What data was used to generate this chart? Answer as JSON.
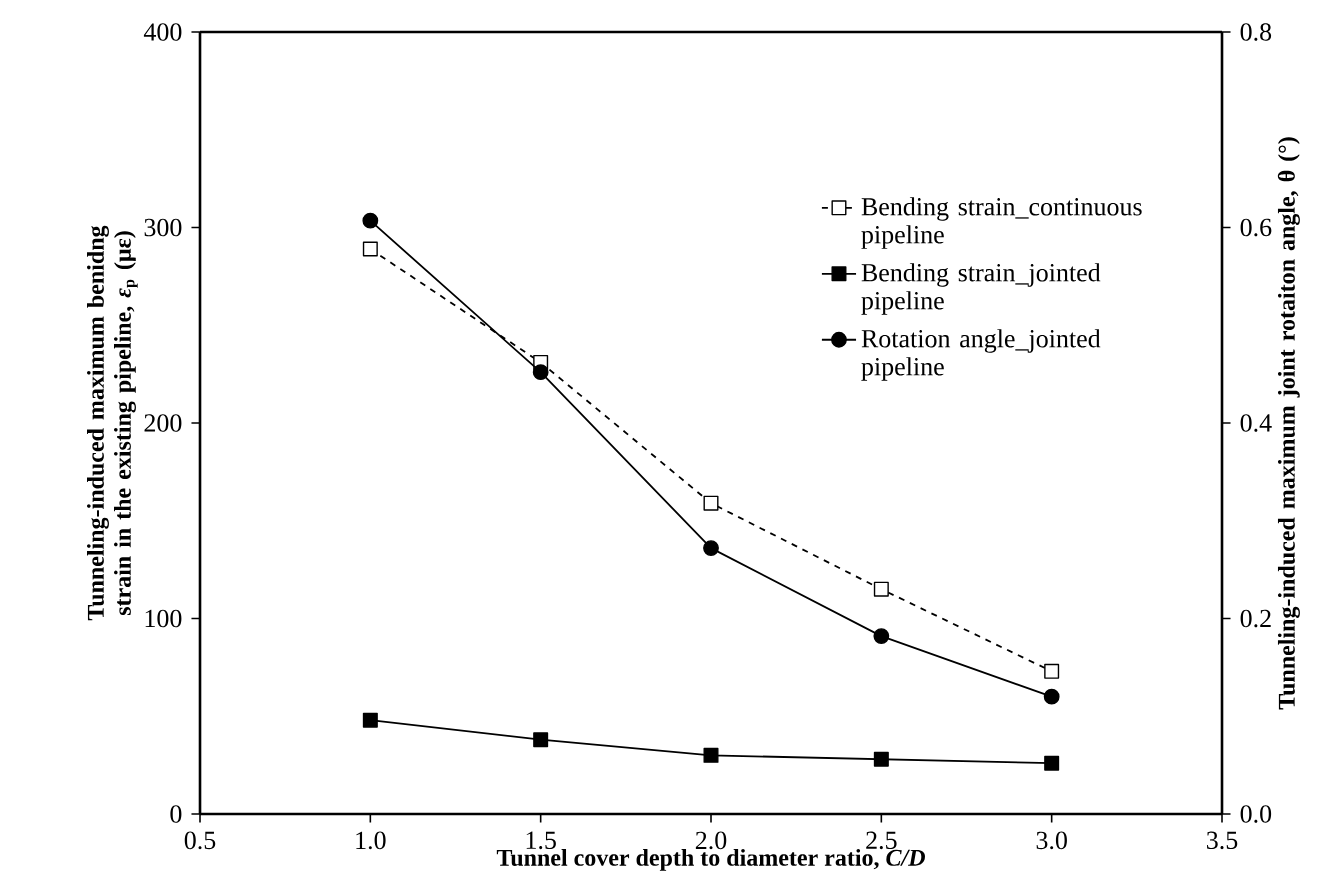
{
  "chart_data": {
    "type": "line",
    "xlabel": "Tunnel cover depth to diameter ratio, *C/D*",
    "ylabel": "Tunneling-induced maximum benidng strain in the existing pipeline, *ε*$_{p}$ (με)",
    "y2label": "Tunneling-induced maximum joint rotaiton angle, θ (°)",
    "x": [
      1.0,
      1.5,
      2.0,
      2.5,
      3.0
    ],
    "series": [
      {
        "name": "Bending strain_continuous pipeline",
        "color": "#000000",
        "marker": "square_open",
        "line_style": "dashed",
        "values": [
          289,
          231,
          159,
          115,
          73
        ]
      },
      {
        "name": "Bending strain_jointed pipeline",
        "color": "#000000",
        "marker": "square",
        "line_style": "solid",
        "values": [
          48,
          38,
          30,
          28,
          26
        ]
      },
      {
        "name": "Rotation angle_jointed pipeline",
        "color": "#000000",
        "marker": "circle",
        "line_style": "solid",
        "axis": "y2",
        "values": [
          0.607,
          0.452,
          0.272,
          0.182,
          0.12
        ]
      }
    ],
    "xlim": [
      0.5,
      3.5
    ],
    "xticks": [
      0.5,
      {
        "value": 1.0,
        "label": "1.0"
      },
      1.5,
      {
        "value": 2.0,
        "label": "2.0"
      },
      2.5,
      {
        "value": 3.0,
        "label": "3.0"
      },
      3.5
    ],
    "ylim": [
      0,
      400
    ],
    "yticks": [
      0,
      100,
      200,
      300,
      400
    ],
    "y2lim": [
      0,
      0.8
    ],
    "y2ticks": [
      {
        "value": 0,
        "label": "0.0"
      },
      0.2,
      0.4,
      0.6,
      0.8
    ],
    "grid": false,
    "legend": "top right"
  }
}
